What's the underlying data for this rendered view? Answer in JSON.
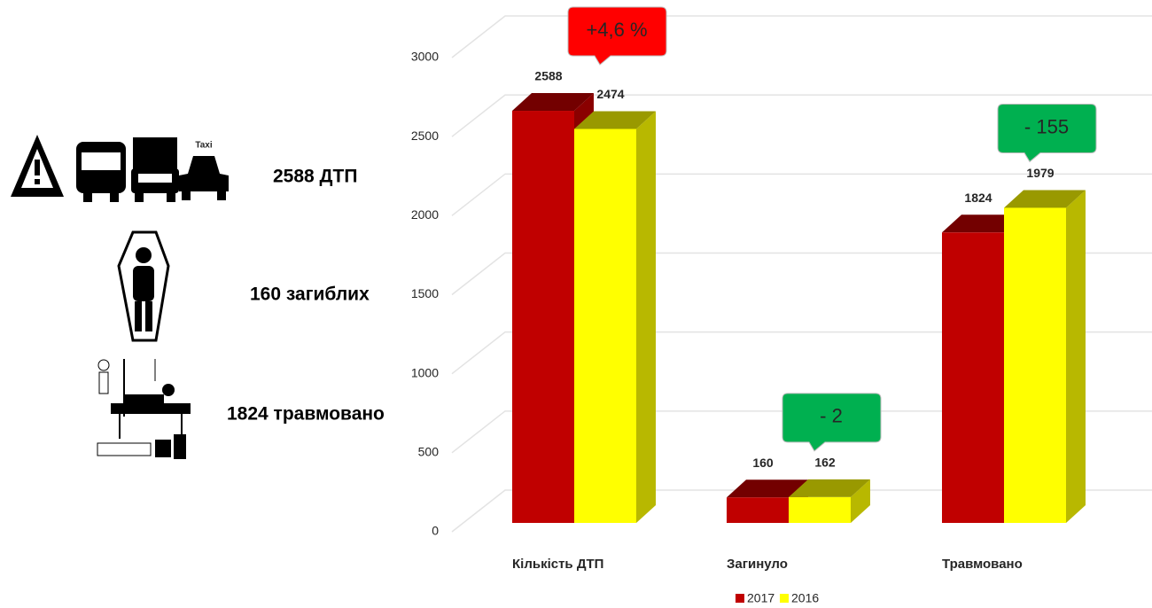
{
  "infographic": {
    "items": [
      "2588 ДТП",
      "160 загиблих",
      "1824 травмовано"
    ]
  },
  "chart_data": {
    "type": "bar3d",
    "categories": [
      "Кількість ДТП",
      "Загинуло",
      "Травмовано"
    ],
    "series": [
      {
        "name": "2017",
        "color": "#c00000",
        "values": [
          2588,
          160,
          1824
        ]
      },
      {
        "name": "2016",
        "color": "#ffff00",
        "values": [
          2474,
          162,
          1979
        ]
      }
    ],
    "annotations": [
      {
        "text": "+4,6 %",
        "color": "#ff0000"
      },
      {
        "text": "- 2",
        "color": "#00b050"
      },
      {
        "text": "- 155",
        "color": "#00b050"
      }
    ],
    "ylim": [
      0,
      3000
    ],
    "yticks": [
      0,
      500,
      1000,
      1500,
      2000,
      2500,
      3000
    ],
    "grid": true
  }
}
